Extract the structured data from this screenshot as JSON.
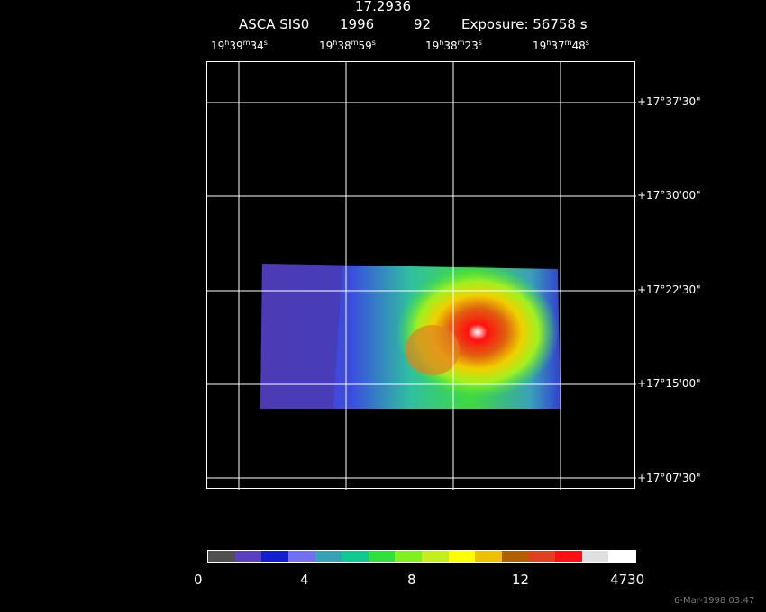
{
  "header": {
    "value": "17.2936",
    "mission": "ASCA SIS0",
    "year": "1996",
    "day": "92",
    "exposure": "Exposure: 56758 s"
  },
  "ra_labels": [
    {
      "h": "19",
      "m": "39",
      "s": "34"
    },
    {
      "h": "19",
      "m": "38",
      "s": "59"
    },
    {
      "h": "19",
      "m": "38",
      "s": "23"
    },
    {
      "h": "19",
      "m": "37",
      "s": "48"
    }
  ],
  "dec_labels": [
    "+17°37'30\"",
    "+17°30'00\"",
    "+17°22'30\"",
    "+17°15'00\"",
    "+17°07'30\""
  ],
  "colorbar": {
    "colors": [
      "#505050",
      "#5a3fc0",
      "#1020d0",
      "#7070f0",
      "#3aa0b8",
      "#10c890",
      "#30e040",
      "#80f020",
      "#c0f020",
      "#ffff00",
      "#f0c000",
      "#b06000",
      "#e04020",
      "#ff1010",
      "#e0e0e0",
      "#ffffff"
    ],
    "labels": [
      "0",
      "4",
      "8",
      "12",
      "4730"
    ]
  },
  "timestamp": "6-Mar-1998 03:47"
}
